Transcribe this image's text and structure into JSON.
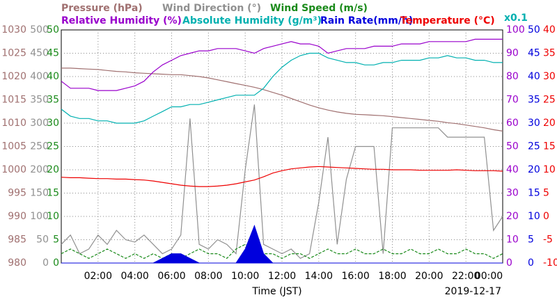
{
  "chart_data": {
    "type": "line",
    "grid": true,
    "x_label": "Time (JST)",
    "date": "2019-12-17",
    "xlim": [
      0,
      24
    ],
    "xticks": [
      {
        "value": 2,
        "label": "02:00"
      },
      {
        "value": 4,
        "label": "04:00"
      },
      {
        "value": 6,
        "label": "06:00"
      },
      {
        "value": 8,
        "label": "08:00"
      },
      {
        "value": 10,
        "label": "10:00"
      },
      {
        "value": 12,
        "label": "12:00"
      },
      {
        "value": 14,
        "label": "14:00"
      },
      {
        "value": 16,
        "label": "16:00"
      },
      {
        "value": 18,
        "label": "18:00"
      },
      {
        "value": 20,
        "label": "20:00"
      },
      {
        "value": 22,
        "label": "22:00"
      },
      {
        "value": 24,
        "label": "00:00"
      }
    ],
    "x": [
      0,
      0.5,
      1,
      1.5,
      2,
      2.5,
      3,
      3.5,
      4,
      4.5,
      5,
      5.5,
      6,
      6.5,
      7,
      7.5,
      8,
      8.5,
      9,
      9.5,
      10,
      10.5,
      11,
      11.5,
      12,
      12.5,
      13,
      13.5,
      14,
      14.5,
      15,
      15.5,
      16,
      16.5,
      17,
      17.5,
      18,
      18.5,
      19,
      19.5,
      20,
      20.5,
      21,
      21.5,
      22,
      22.5,
      23,
      23.5,
      24
    ],
    "series": [
      {
        "name": "Pressure (hPa)",
        "color": "#a07070",
        "side": "left",
        "style": "solid",
        "ylim": [
          980,
          1030
        ],
        "yticks": [
          980,
          985,
          990,
          995,
          1000,
          1005,
          1010,
          1015,
          1020,
          1025,
          1030
        ],
        "values": [
          1021.8,
          1021.8,
          1021.7,
          1021.6,
          1021.5,
          1021.3,
          1021.1,
          1021.0,
          1020.8,
          1020.7,
          1020.6,
          1020.5,
          1020.4,
          1020.4,
          1020.2,
          1020.0,
          1019.7,
          1019.3,
          1018.9,
          1018.5,
          1018.1,
          1017.7,
          1017.2,
          1016.6,
          1016.0,
          1015.3,
          1014.6,
          1013.9,
          1013.3,
          1012.8,
          1012.4,
          1012.1,
          1011.9,
          1011.8,
          1011.7,
          1011.6,
          1011.4,
          1011.2,
          1011.0,
          1010.8,
          1010.6,
          1010.4,
          1010.1,
          1009.9,
          1009.6,
          1009.3,
          1009.0,
          1008.6,
          1008.3
        ]
      },
      {
        "name": "Wind Direction (°)",
        "color": "#909090",
        "side": "left",
        "style": "solid",
        "ylim": [
          0,
          500
        ],
        "yticks": [
          0,
          50,
          100,
          150,
          200,
          250,
          300,
          350,
          400,
          450,
          500
        ],
        "values": [
          40,
          60,
          20,
          30,
          60,
          40,
          70,
          50,
          45,
          60,
          40,
          20,
          30,
          60,
          310,
          40,
          30,
          50,
          40,
          20,
          200,
          340,
          40,
          30,
          20,
          30,
          10,
          20,
          130,
          270,
          40,
          180,
          250,
          250,
          250,
          20,
          290,
          290,
          290,
          290,
          290,
          290,
          270,
          270,
          270,
          270,
          270,
          70,
          100
        ]
      },
      {
        "name": "Wind Speed (m/s)",
        "color": "#1a8a1a",
        "side": "left",
        "style": "dashed",
        "ylim": [
          0,
          50
        ],
        "yticks": [
          0,
          5,
          10,
          15,
          20,
          25,
          30,
          35,
          40,
          45,
          50
        ],
        "values": [
          2,
          3,
          2,
          1,
          2,
          3,
          2,
          1,
          2,
          1,
          2,
          1,
          2,
          1,
          2,
          3,
          2,
          2,
          1,
          3,
          4,
          3,
          2,
          2,
          1,
          2,
          2,
          1,
          2,
          3,
          2,
          2,
          3,
          2,
          2,
          3,
          2,
          2,
          3,
          2,
          2,
          3,
          2,
          2,
          3,
          2,
          2,
          1,
          2
        ]
      },
      {
        "name": "Relative Humidity (%)",
        "color": "#9900cc",
        "side": "right",
        "style": "solid",
        "ylim": [
          0,
          100
        ],
        "yticks": [
          0,
          10,
          20,
          30,
          40,
          50,
          60,
          70,
          80,
          90,
          100
        ],
        "values": [
          78,
          75,
          75,
          75,
          74,
          74,
          74,
          75,
          76,
          78,
          82,
          85,
          87,
          89,
          90,
          91,
          91,
          92,
          92,
          92,
          91,
          90,
          92,
          93,
          94,
          95,
          94,
          94,
          93,
          90,
          91,
          92,
          92,
          92,
          93,
          93,
          93,
          94,
          94,
          94,
          95,
          95,
          95,
          95,
          95,
          96,
          96,
          96,
          96
        ]
      },
      {
        "name": "Absolute Humidity (g/m³)",
        "color": "#00b0b0",
        "side": "right",
        "style": "solid",
        "ylim": [
          0,
          100
        ],
        "scale_label": "x0.1",
        "values": [
          66,
          63,
          62,
          62,
          61,
          61,
          60,
          60,
          60,
          61,
          63,
          65,
          67,
          67,
          68,
          68,
          69,
          70,
          71,
          72,
          72,
          72,
          75,
          80,
          84,
          87,
          89,
          90,
          90,
          88,
          87,
          86,
          86,
          85,
          85,
          86,
          86,
          87,
          87,
          87,
          88,
          88,
          89,
          88,
          88,
          87,
          87,
          86,
          86
        ]
      },
      {
        "name": "Rain Rate(mm/h)",
        "color": "#0000dd",
        "side": "right",
        "style": "area",
        "ylim": [
          0,
          50
        ],
        "yticks": [
          0,
          5,
          10,
          15,
          20,
          25,
          30,
          35,
          40,
          45,
          50
        ],
        "values": [
          0,
          0,
          0,
          0,
          0,
          0,
          0,
          0,
          0,
          0,
          0,
          1,
          2,
          2,
          1,
          0,
          0,
          0,
          0,
          0,
          3,
          8,
          2,
          0,
          0,
          0,
          0,
          0,
          0,
          0,
          0,
          0,
          0,
          0,
          0,
          0,
          0,
          0,
          0,
          0,
          0,
          0,
          0,
          0,
          0,
          0,
          0,
          0,
          0
        ]
      },
      {
        "name": "Temperature (°C)",
        "color": "#ee0000",
        "side": "right",
        "style": "solid",
        "ylim": [
          -10,
          40
        ],
        "yticks": [
          -10,
          -5,
          0,
          5,
          10,
          15,
          20,
          25,
          30,
          35,
          40
        ],
        "values": [
          8.4,
          8.3,
          8.3,
          8.2,
          8.1,
          8.1,
          8.0,
          8.0,
          7.9,
          7.8,
          7.6,
          7.3,
          7.0,
          6.7,
          6.5,
          6.4,
          6.4,
          6.5,
          6.7,
          7.0,
          7.4,
          7.8,
          8.5,
          9.3,
          9.8,
          10.2,
          10.4,
          10.6,
          10.7,
          10.6,
          10.5,
          10.4,
          10.3,
          10.2,
          10.1,
          10.1,
          10.0,
          10.0,
          10.0,
          9.9,
          9.9,
          9.9,
          9.9,
          10.0,
          9.9,
          9.8,
          9.8,
          9.8,
          9.7
        ]
      }
    ]
  }
}
